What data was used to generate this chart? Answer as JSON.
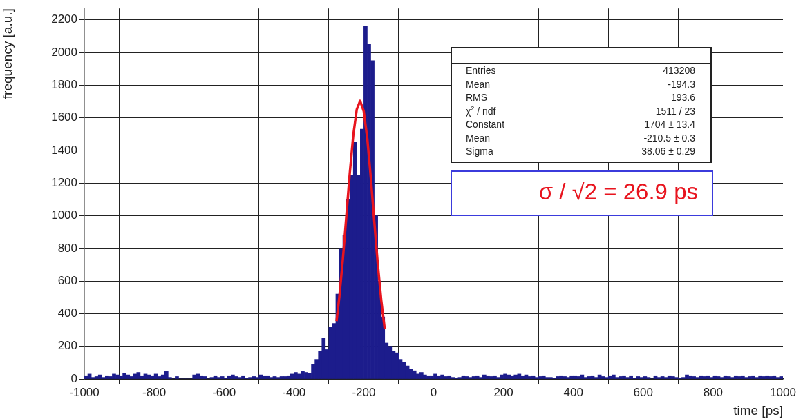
{
  "chart_data": {
    "type": "histogram",
    "xlabel": "time [ps]",
    "ylabel": "frequency [a.u.]",
    "bins": [
      -1000,
      -990,
      -980,
      -970,
      -960,
      -950,
      -940,
      -930,
      -920,
      -910,
      -900,
      -890,
      -880,
      -870,
      -860,
      -850,
      -840,
      -830,
      -820,
      -810,
      -800,
      -790,
      -780,
      -770,
      -760,
      -750,
      -740,
      -730,
      -720,
      -710,
      -700,
      -690,
      -680,
      -670,
      -660,
      -650,
      -640,
      -630,
      -620,
      -610,
      -600,
      -590,
      -580,
      -570,
      -560,
      -550,
      -540,
      -530,
      -520,
      -510,
      -500,
      -490,
      -480,
      -470,
      -460,
      -450,
      -440,
      -430,
      -420,
      -410,
      -400,
      -390,
      -380,
      -370,
      -360,
      -350,
      -340,
      -330,
      -320,
      -310,
      -300,
      -290,
      -280,
      -270,
      -260,
      -250,
      -240,
      -230,
      -220,
      -210,
      -200,
      -190,
      -180,
      -170,
      -160,
      -150,
      -140,
      -130,
      -120,
      -110,
      -100,
      -90,
      -80,
      -70,
      -60,
      -50,
      -40,
      -30,
      -20,
      -10,
      0,
      10,
      20,
      30,
      40,
      50,
      60,
      70,
      80,
      90,
      100,
      110,
      120,
      130,
      140,
      150,
      160,
      170,
      180,
      190,
      200,
      210,
      220,
      230,
      240,
      250,
      260,
      270,
      280,
      290,
      300,
      310,
      320,
      330,
      340,
      350,
      360,
      370,
      380,
      390,
      400,
      410,
      420,
      430,
      440,
      450,
      460,
      470,
      480,
      490,
      500,
      510,
      520,
      530,
      540,
      550,
      560,
      570,
      580,
      590,
      600,
      610,
      620,
      630,
      640,
      650,
      660,
      670,
      680,
      690,
      700,
      710,
      720,
      730,
      740,
      750,
      760,
      770,
      780,
      790,
      800,
      810,
      820,
      830,
      840,
      850,
      860,
      870,
      880,
      890,
      900,
      910,
      920,
      930,
      940,
      950,
      960,
      970,
      980,
      990,
      1000
    ],
    "series": [
      {
        "color": "#1c1c8c",
        "values": [
          20,
          30,
          10,
          15,
          25,
          10,
          20,
          15,
          30,
          25,
          20,
          35,
          25,
          15,
          30,
          40,
          20,
          30,
          25,
          20,
          30,
          15,
          25,
          45,
          10,
          0,
          15,
          0,
          0,
          0,
          0,
          25,
          30,
          20,
          15,
          0,
          10,
          20,
          10,
          15,
          5,
          20,
          25,
          15,
          10,
          20,
          5,
          10,
          15,
          10,
          25,
          20,
          20,
          10,
          15,
          10,
          15,
          15,
          20,
          30,
          40,
          30,
          45,
          40,
          35,
          90,
          120,
          170,
          250,
          180,
          320,
          340,
          520,
          800,
          880,
          1100,
          1250,
          1450,
          1250,
          1530,
          2160,
          2050,
          1950,
          1000,
          600,
          380,
          220,
          200,
          170,
          160,
          120,
          100,
          80,
          60,
          50,
          30,
          40,
          25,
          20,
          20,
          30,
          20,
          25,
          15,
          20,
          10,
          5,
          10,
          20,
          15,
          10,
          15,
          20,
          10,
          25,
          20,
          15,
          20,
          10,
          25,
          30,
          25,
          20,
          25,
          30,
          20,
          25,
          15,
          20,
          10,
          15,
          20,
          10,
          10,
          5,
          15,
          20,
          15,
          10,
          20,
          20,
          15,
          25,
          10,
          15,
          20,
          10,
          25,
          15,
          10,
          20,
          25,
          10,
          15,
          20,
          10,
          20,
          5,
          15,
          10,
          15,
          10,
          0,
          20,
          10,
          15,
          10,
          20,
          15,
          10,
          5,
          10,
          25,
          20,
          15,
          10,
          20,
          15,
          20,
          10,
          20,
          15,
          10,
          20,
          15,
          10,
          20,
          15,
          20,
          10,
          15,
          20,
          10,
          20,
          15,
          20,
          15,
          20,
          10,
          15
        ]
      },
      {
        "type": "line",
        "color": "#e8141e",
        "x": [
          -278,
          -270,
          -260,
          -250,
          -240,
          -230,
          -220,
          -210.5,
          -200,
          -190,
          -180,
          -170,
          -160,
          -150,
          -140
        ],
        "values": [
          354,
          502,
          731,
          994,
          1262,
          1494,
          1652,
          1704,
          1640,
          1474,
          1236,
          967,
          707,
          482,
          306
        ]
      }
    ],
    "xlim": [
      -1000,
      1000
    ],
    "xticks": [
      -1000,
      -800,
      -600,
      -400,
      -200,
      0,
      200,
      400,
      600,
      800,
      1000
    ],
    "ylim": [
      0,
      2270
    ],
    "yticks": [
      0,
      200,
      400,
      600,
      800,
      1000,
      1200,
      1400,
      1600,
      1800,
      2000,
      2200
    ],
    "grid": true,
    "legend": false,
    "line_style": "solid",
    "annotations": [
      "Entries",
      "413208",
      "Mean",
      "-194.3",
      "RMS",
      "193.6",
      "χ$^{2}$ / ndf",
      "1511 / 23",
      "Constant",
      "1704 ± 13.4",
      "Mean",
      "-210.5 ± 0.3",
      "Sigma",
      "38.06 ± 0.29",
      "σ / √2 = 26.9 ps"
    ]
  }
}
